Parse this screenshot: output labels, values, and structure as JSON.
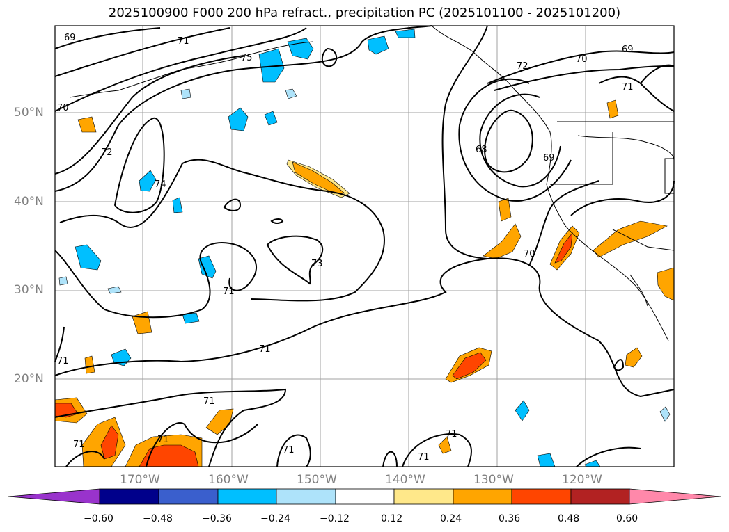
{
  "title": "2025100900 F000 200 hPa refract., precipitation PC (2025101100 - 2025101200)",
  "lat_labels": [
    "50°N",
    "40°N",
    "30°N",
    "20°N"
  ],
  "lon_labels": [
    "170°W",
    "160°W",
    "150°W",
    "140°W",
    "130°W",
    "120°W"
  ],
  "contour_labels": [
    "69",
    "71",
    "75",
    "70",
    "72",
    "74",
    "68",
    "69",
    "72",
    "70",
    "69",
    "71",
    "73",
    "71",
    "70",
    "71",
    "71",
    "71",
    "71",
    "71",
    "71",
    "71",
    "71"
  ],
  "colorbar": {
    "tick_labels": [
      "−0.60",
      "−0.48",
      "−0.36",
      "−0.24",
      "−0.12",
      "0.12",
      "0.24",
      "0.36",
      "0.48",
      "0.60"
    ],
    "colors": [
      "#9933cc",
      "#00008b",
      "#3a5fcd",
      "#00bfff",
      "#aee3fa",
      "#ffffff",
      "#ffe88a",
      "#ffa500",
      "#ff4500",
      "#b22222",
      "#ff88aa"
    ]
  },
  "shading_colors": {
    "light_blue": "#aee3fa",
    "blue": "#00bfff",
    "mid_blue": "#3a5fcd",
    "light_yellow": "#ffe88a",
    "orange": "#ffa500",
    "red_orange": "#ff4500",
    "grid": "#a0a0a0",
    "contour": "#000000"
  }
}
